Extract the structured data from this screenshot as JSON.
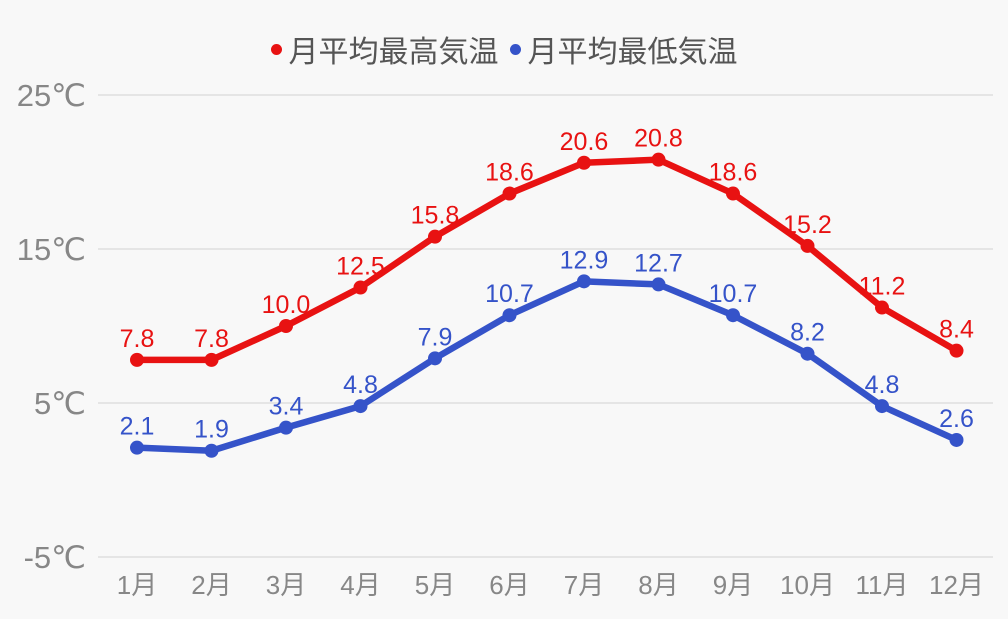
{
  "chart_data": {
    "type": "line",
    "categories": [
      "1月",
      "2月",
      "3月",
      "4月",
      "5月",
      "6月",
      "7月",
      "8月",
      "9月",
      "10月",
      "11月",
      "12月"
    ],
    "series": [
      {
        "name": "月平均最高気温",
        "color": "#e81212",
        "values": [
          7.8,
          7.8,
          10.0,
          12.5,
          15.8,
          18.6,
          20.6,
          20.8,
          18.6,
          15.2,
          11.2,
          8.4
        ]
      },
      {
        "name": "月平均最低気温",
        "color": "#3553c9",
        "values": [
          2.1,
          1.9,
          3.4,
          4.8,
          7.9,
          10.7,
          12.9,
          12.7,
          10.7,
          8.2,
          4.8,
          2.6
        ]
      }
    ],
    "ylim": [
      -5,
      25
    ],
    "yticks": [
      {
        "value": 25,
        "label": "25℃"
      },
      {
        "value": 15,
        "label": "15℃"
      },
      {
        "value": 5,
        "label": "5℃"
      },
      {
        "value": -5,
        "label": "-5℃"
      }
    ],
    "grid": true,
    "legend_position": "top",
    "data_labels": true,
    "data_label_decimals": 1
  },
  "colors": {
    "background": "#f8f8f8",
    "gridline": "#e5e5e5",
    "axis_text": "#878787",
    "legend_text": "#555555"
  }
}
